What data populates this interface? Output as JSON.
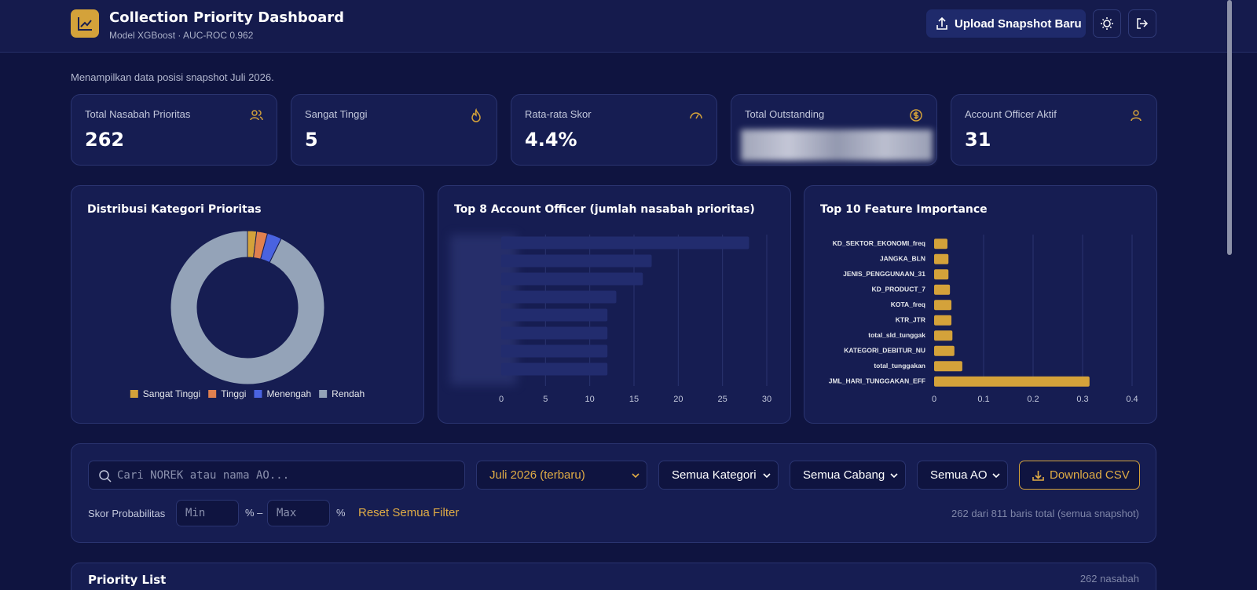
{
  "header": {
    "title": "Collection Priority Dashboard",
    "subtitle": "Model XGBoost · AUC-ROC 0.962",
    "upload_button": "Upload Snapshot Baru"
  },
  "snapshot_note": "Menampilkan data posisi snapshot Juli 2026.",
  "kpis": [
    {
      "label": "Total Nasabah Prioritas",
      "value": "262"
    },
    {
      "label": "Sangat Tinggi",
      "value": "5"
    },
    {
      "label": "Rata-rata Skor",
      "value": "4.4%"
    },
    {
      "label": "Total Outstanding"
    },
    {
      "label": "Account Officer Aktif",
      "value": "31"
    }
  ],
  "chart_data": [
    {
      "type": "pie",
      "title": "Distribusi Kategori Prioritas",
      "categories": [
        "Sangat Tinggi",
        "Tinggi",
        "Menengah",
        "Rendah"
      ],
      "values": [
        5,
        6,
        8,
        243
      ],
      "colors": [
        "#d4a23a",
        "#e0804f",
        "#4a63e0",
        "#94a3b8"
      ],
      "donut": true,
      "legend": "bottom"
    },
    {
      "type": "bar",
      "orientation": "horizontal",
      "title": "Top 8 Account Officer (jumlah nasabah prioritas)",
      "categories": [
        null,
        null,
        null,
        null,
        null,
        null,
        null,
        null
      ],
      "values": [
        28,
        17,
        16,
        13,
        12,
        12,
        12,
        12
      ],
      "color": "#222c6e",
      "xlim": [
        0,
        30
      ],
      "xticks": [
        0,
        5,
        10,
        15,
        20,
        25,
        30
      ],
      "grid": true
    },
    {
      "type": "bar",
      "orientation": "horizontal",
      "title": "Top 10 Feature Importance",
      "categories": [
        "KD_SEKTOR_EKONOMI_freq",
        "JANGKA_BLN",
        "JENIS_PENGGUNAAN_31",
        "KD_PRODUCT_7",
        "KOTA_freq",
        "KTR_JTR",
        "total_sld_tunggak",
        "KATEGORI_DEBITUR_NU",
        "total_tunggakan",
        "JML_HARI_TUNGGAKAN_EFF"
      ],
      "values": [
        0.027,
        0.029,
        0.029,
        0.032,
        0.035,
        0.035,
        0.037,
        0.041,
        0.057,
        0.314
      ],
      "color": "#d4a23a",
      "xlim": [
        0,
        0.4
      ],
      "xticks": [
        0,
        0.1,
        0.2,
        0.3,
        0.4
      ],
      "grid": true
    }
  ],
  "filters": {
    "search_placeholder": "Cari NOREK atau nama AO...",
    "period": "Juli 2026 (terbaru)",
    "category": "Semua Kategori",
    "branch": "Semua Cabang",
    "ao": "Semua AO",
    "download": "Download CSV",
    "score_label": "Skor Probabilitas",
    "min_placeholder": "Min",
    "separator": "% –",
    "max_placeholder": "Max",
    "percent": "%",
    "reset": "Reset Semua Filter",
    "row_count": "262 dari 811 baris total (semua snapshot)"
  },
  "list": {
    "title": "Priority List",
    "count": "262 nasabah"
  }
}
